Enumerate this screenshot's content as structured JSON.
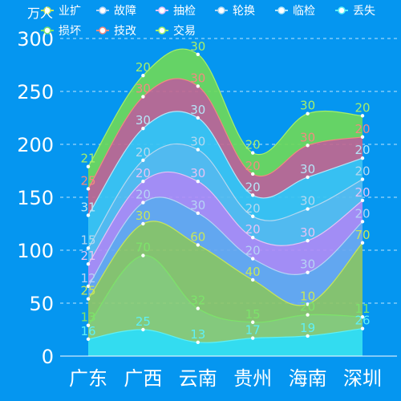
{
  "chart_data": {
    "type": "area",
    "stacked": true,
    "smooth": true,
    "y_unit": "万人",
    "categories": [
      "广东",
      "广西",
      "云南",
      "贵州",
      "海南",
      "深圳"
    ],
    "ylim": [
      0,
      300
    ],
    "yticks": [
      0,
      50,
      100,
      150,
      200,
      250,
      300
    ],
    "grid": true,
    "legend_position": "top",
    "series": [
      {
        "name": "丢失",
        "color": "#37e2f0",
        "label_color": "#5ff0f5",
        "values": [
          16,
          25,
          13,
          17,
          19,
          26
        ]
      },
      {
        "name": "损坏",
        "color": "#8fcd73",
        "label_color": "#7de36b",
        "values": [
          13,
          70,
          32,
          15,
          20,
          11
        ]
      },
      {
        "name": "业扩",
        "color": "#8fc566",
        "label_color": "#c8e65a",
        "values": [
          25,
          30,
          60,
          40,
          10,
          70
        ]
      },
      {
        "name": "故障",
        "color": "#6aa8f0",
        "label_color": "#b6d3f5",
        "values": [
          12,
          20,
          30,
          20,
          30,
          20
        ]
      },
      {
        "name": "抽检",
        "color": "#b08cf5",
        "label_color": "#e4c3f5",
        "values": [
          21,
          20,
          30,
          20,
          30,
          20
        ]
      },
      {
        "name": "轮换",
        "color": "#58bdf0",
        "label_color": "#b5d8f0",
        "values": [
          15,
          20,
          30,
          20,
          30,
          20
        ]
      },
      {
        "name": "临检",
        "color": "#3cc3f2",
        "label_color": "#b5e5f8",
        "values": [
          31,
          30,
          30,
          20,
          30,
          20
        ]
      },
      {
        "name": "技改",
        "color": "#c1678f",
        "label_color": "#f28a80",
        "values": [
          25,
          30,
          30,
          20,
          30,
          20
        ]
      },
      {
        "name": "交易",
        "color": "#6ed85a",
        "label_color": "#a6ef6a",
        "values": [
          21,
          20,
          30,
          20,
          30,
          20
        ]
      }
    ],
    "legend_order": [
      "业扩",
      "故障",
      "抽检",
      "轮换",
      "临检",
      "丢失",
      "损坏",
      "技改",
      "交易"
    ]
  }
}
